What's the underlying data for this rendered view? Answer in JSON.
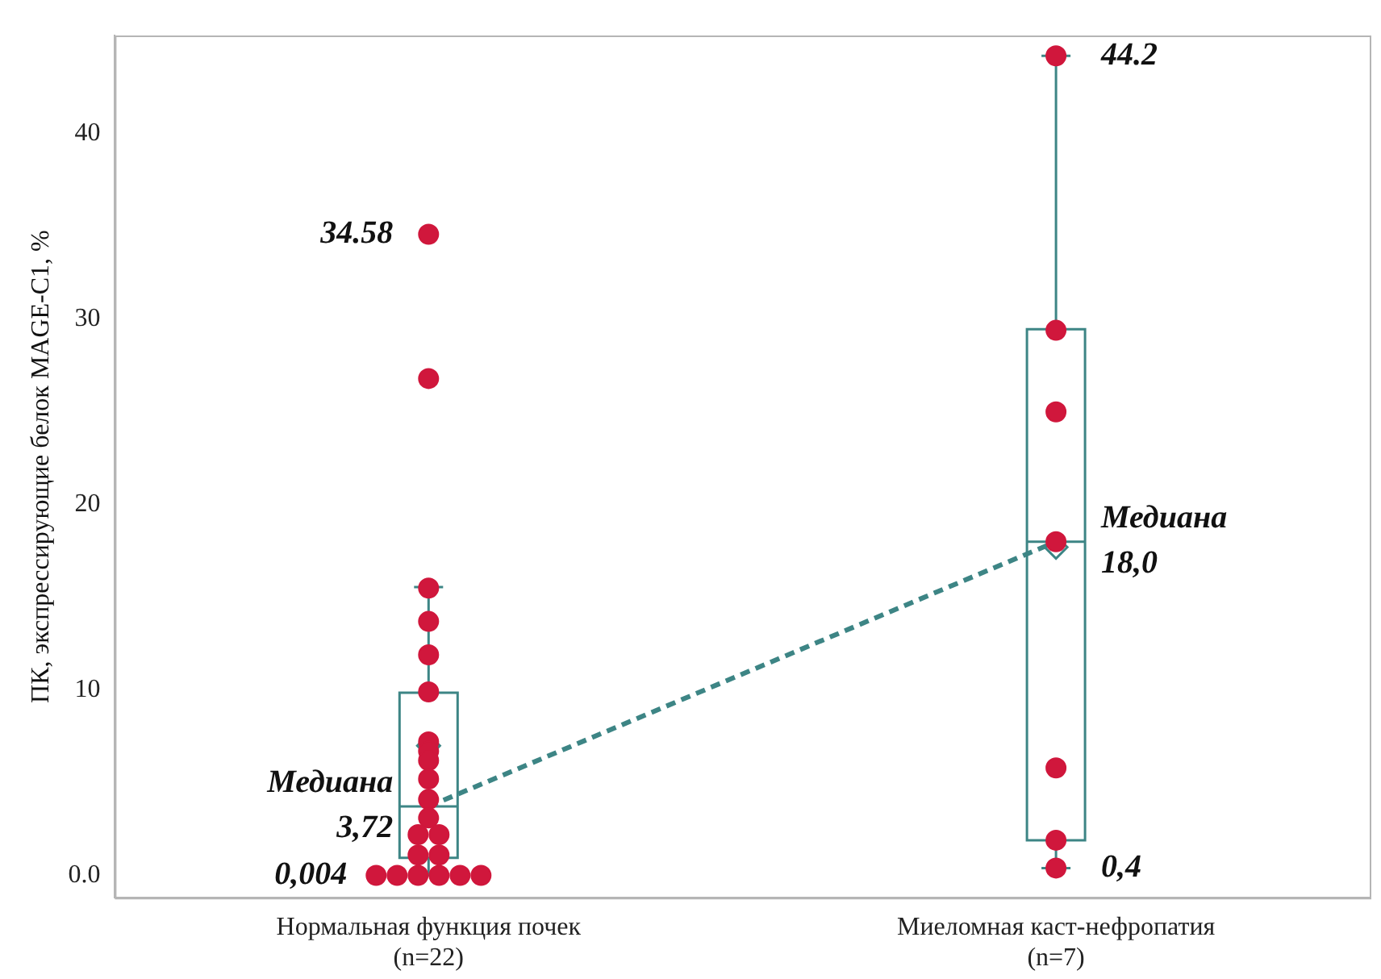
{
  "chart_data": {
    "type": "box",
    "ylabel": "ПК, экспрессирующие белок MAGE-C1, %",
    "categories": [
      "Нормальная функция почек\n(n=22)",
      "Миеломная каст-нефропатия\n(n=7)"
    ],
    "ylim": [
      -1.2,
      45.3
    ],
    "yticks": [
      {
        "value": 0,
        "label": "0.0"
      },
      10,
      20,
      30,
      40
    ],
    "grid": false,
    "legend": false,
    "color": "#3d8585",
    "boxes": [
      {
        "low": 0.004,
        "q1": 0.95,
        "median": 3.72,
        "q3": 9.85,
        "high": 15.55,
        "mean": 7.0
      },
      {
        "low": 0.4,
        "q1": 1.9,
        "median": 18.0,
        "q3": 29.46,
        "high": 44.2,
        "mean": 17.7
      }
    ],
    "series": [
      {
        "type": "scatter",
        "color": "#d0173c",
        "marker": "circle",
        "x": [
          "Нормальная функция почек\n(n=22)",
          "Нормальная функция почек\n(n=22)",
          "Нормальная функция почек\n(n=22)",
          "Нормальная функция почек\n(n=22)",
          "Нормальная функция почек\n(n=22)",
          "Нормальная функция почек\n(n=22)",
          "Нормальная функция почек\n(n=22)",
          "Нормальная функция почек\n(n=22)",
          "Нормальная функция почек\n(n=22)",
          "Нормальная функция почек\n(n=22)",
          "Нормальная функция почек\n(n=22)",
          "Нормальная функция почек\n(n=22)",
          "Нормальная функция почек\n(n=22)",
          "Нормальная функция почек\n(n=22)",
          "Нормальная функция почек\n(n=22)",
          "Нормальная функция почек\n(n=22)",
          "Нормальная функция почек\n(n=22)",
          "Нормальная функция почек\n(n=22)",
          "Нормальная функция почек\n(n=22)",
          "Нормальная функция почек\n(n=22)",
          "Нормальная функция почек\n(n=22)",
          "Нормальная функция почек\n(n=22)",
          "Миеломная каст-нефропатия\n(n=7)",
          "Миеломная каст-нефропатия\n(n=7)",
          "Миеломная каст-нефропатия\n(n=7)",
          "Миеломная каст-нефропатия\n(n=7)",
          "Миеломная каст-нефропатия\n(n=7)",
          "Миеломная каст-нефропатия\n(n=7)",
          "Миеломная каст-нефропатия\n(n=7)"
        ],
        "values": [
          34.58,
          26.8,
          15.5,
          13.7,
          11.9,
          9.9,
          7.2,
          6.7,
          6.2,
          5.2,
          4.1,
          3.1,
          2.2,
          2.2,
          1.1,
          1.1,
          0.004,
          0.004,
          0.004,
          0.004,
          0.004,
          0.004,
          44.2,
          29.4,
          25.0,
          18.0,
          5.8,
          1.9,
          0.4
        ]
      },
      {
        "type": "line",
        "color": "#3d8585",
        "line_style": "dashed",
        "marker": "none",
        "values": [
          3.72,
          18.0
        ]
      }
    ],
    "annotations": [
      {
        "text": "34.58",
        "x": "Нормальная функция почек\n(n=22)",
        "y": 34.58
      },
      {
        "text": "Медиана\n3,72",
        "x": "Нормальная функция почек\n(n=22)",
        "y": 3.72
      },
      {
        "text": "0,004",
        "x": "Нормальная функция почек\n(n=22)",
        "y": 0.004
      },
      {
        "text": "44.2",
        "x": "Миеломная каст-нефропатия\n(n=7)",
        "y": 44.2
      },
      {
        "text": "Медиана\n18,0",
        "x": "Миеломная каст-нефропатия\n(n=7)",
        "y": 18.0
      },
      {
        "text": "0,4",
        "x": "Миеломная каст-нефропатия\n(n=7)",
        "y": 0.4
      }
    ]
  }
}
